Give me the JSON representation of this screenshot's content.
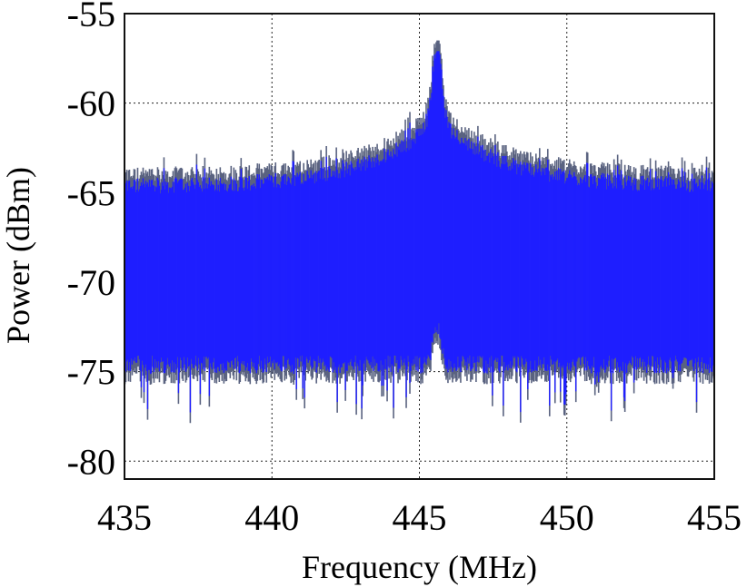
{
  "chart_data": {
    "type": "line",
    "title": "",
    "xlabel": "Frequency (MHz)",
    "ylabel": "Power (dBm)",
    "xlim": [
      435,
      455
    ],
    "ylim": [
      -81,
      -55
    ],
    "x_ticks": [
      "435",
      "440",
      "445",
      "450",
      "455"
    ],
    "y_ticks": [
      "-55",
      "-60",
      "-65",
      "-70",
      "-75",
      "-80"
    ],
    "grid": true,
    "series": [
      {
        "color": "#1f1fff",
        "edge_color": "#5a6380",
        "noise_floor_top_dBm": -64.5,
        "noise_floor_bottom_dBm": -74.5,
        "peak_frequency_MHz": 445.6,
        "peak_power_dBm": -56.5,
        "min_power_dBm": -78.2
      }
    ]
  }
}
